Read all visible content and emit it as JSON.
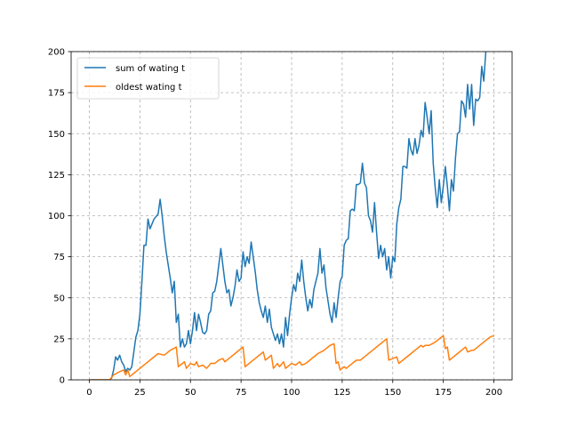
{
  "chart_data": {
    "type": "line",
    "title": "",
    "xlabel": "",
    "ylabel": "",
    "xlim": [
      -9,
      209
    ],
    "ylim": [
      0,
      200
    ],
    "x_ticks": [
      0,
      25,
      50,
      75,
      100,
      125,
      150,
      175,
      200
    ],
    "y_ticks": [
      0,
      25,
      50,
      75,
      100,
      125,
      150,
      175,
      200
    ],
    "grid": true,
    "legend_position": "top-left",
    "series": [
      {
        "name": "sum of wating t",
        "color": "#1f77b4",
        "points": [
          [
            0,
            0
          ],
          [
            5,
            0
          ],
          [
            10,
            0
          ],
          [
            11,
            1
          ],
          [
            12,
            6
          ],
          [
            13,
            14
          ],
          [
            14,
            12
          ],
          [
            15,
            15
          ],
          [
            16,
            11
          ],
          [
            17,
            9
          ],
          [
            18,
            5
          ],
          [
            19,
            7
          ],
          [
            20,
            6
          ],
          [
            21,
            8
          ],
          [
            22,
            17
          ],
          [
            23,
            26
          ],
          [
            24,
            30
          ],
          [
            25,
            40
          ],
          [
            26,
            60
          ],
          [
            27,
            82
          ],
          [
            28,
            82
          ],
          [
            29,
            98
          ],
          [
            30,
            92
          ],
          [
            31,
            95
          ],
          [
            32,
            98
          ],
          [
            34,
            101
          ],
          [
            35,
            110
          ],
          [
            36,
            100
          ],
          [
            37,
            88
          ],
          [
            38,
            78
          ],
          [
            39,
            70
          ],
          [
            40,
            62
          ],
          [
            41,
            53
          ],
          [
            42,
            60
          ],
          [
            43,
            35
          ],
          [
            44,
            40
          ],
          [
            45,
            20
          ],
          [
            46,
            25
          ],
          [
            47,
            20
          ],
          [
            48,
            22
          ],
          [
            49,
            30
          ],
          [
            50,
            22
          ],
          [
            51,
            30
          ],
          [
            52,
            41
          ],
          [
            53,
            30
          ],
          [
            54,
            40
          ],
          [
            55,
            35
          ],
          [
            56,
            29
          ],
          [
            57,
            28
          ],
          [
            58,
            30
          ],
          [
            59,
            40
          ],
          [
            60,
            42
          ],
          [
            61,
            53
          ],
          [
            62,
            54
          ],
          [
            63,
            60
          ],
          [
            64,
            70
          ],
          [
            65,
            80
          ],
          [
            66,
            70
          ],
          [
            67,
            60
          ],
          [
            68,
            53
          ],
          [
            69,
            55
          ],
          [
            70,
            45
          ],
          [
            71,
            50
          ],
          [
            72,
            57
          ],
          [
            73,
            67
          ],
          [
            74,
            60
          ],
          [
            75,
            62
          ],
          [
            76,
            78
          ],
          [
            77,
            69
          ],
          [
            78,
            75
          ],
          [
            79,
            71
          ],
          [
            80,
            84
          ],
          [
            81,
            75
          ],
          [
            82,
            66
          ],
          [
            83,
            55
          ],
          [
            84,
            47
          ],
          [
            85,
            42
          ],
          [
            86,
            38
          ],
          [
            87,
            45
          ],
          [
            88,
            35
          ],
          [
            89,
            43
          ],
          [
            90,
            32
          ],
          [
            91,
            28
          ],
          [
            92,
            24
          ],
          [
            93,
            28
          ],
          [
            94,
            22
          ],
          [
            95,
            28
          ],
          [
            96,
            20
          ],
          [
            97,
            38
          ],
          [
            98,
            27
          ],
          [
            99,
            40
          ],
          [
            100,
            50
          ],
          [
            101,
            58
          ],
          [
            102,
            54
          ],
          [
            103,
            65
          ],
          [
            104,
            60
          ],
          [
            105,
            73
          ],
          [
            106,
            60
          ],
          [
            107,
            50
          ],
          [
            108,
            42
          ],
          [
            109,
            49
          ],
          [
            110,
            44
          ],
          [
            111,
            55
          ],
          [
            112,
            60
          ],
          [
            113,
            65
          ],
          [
            114,
            80
          ],
          [
            115,
            65
          ],
          [
            116,
            70
          ],
          [
            117,
            56
          ],
          [
            118,
            48
          ],
          [
            119,
            40
          ],
          [
            120,
            35
          ],
          [
            121,
            47
          ],
          [
            122,
            38
          ],
          [
            123,
            50
          ],
          [
            124,
            60
          ],
          [
            125,
            63
          ],
          [
            126,
            82
          ],
          [
            127,
            85
          ],
          [
            128,
            86
          ],
          [
            129,
            103
          ],
          [
            130,
            104
          ],
          [
            131,
            103
          ],
          [
            132,
            119
          ],
          [
            133,
            119
          ],
          [
            134,
            120
          ],
          [
            135,
            132
          ],
          [
            136,
            120
          ],
          [
            137,
            117
          ],
          [
            138,
            100
          ],
          [
            139,
            97
          ],
          [
            140,
            90
          ],
          [
            141,
            108
          ],
          [
            142,
            90
          ],
          [
            143,
            74
          ],
          [
            144,
            82
          ],
          [
            145,
            75
          ],
          [
            146,
            80
          ],
          [
            147,
            67
          ],
          [
            148,
            75
          ],
          [
            149,
            62
          ],
          [
            150,
            75
          ],
          [
            151,
            72
          ],
          [
            152,
            95
          ],
          [
            153,
            105
          ],
          [
            154,
            110
          ],
          [
            155,
            130
          ],
          [
            156,
            130
          ],
          [
            157,
            129
          ],
          [
            158,
            147
          ],
          [
            159,
            140
          ],
          [
            160,
            137
          ],
          [
            161,
            147
          ],
          [
            162,
            138
          ],
          [
            163,
            143
          ],
          [
            164,
            152
          ],
          [
            165,
            148
          ],
          [
            166,
            169
          ],
          [
            167,
            160
          ],
          [
            168,
            150
          ],
          [
            169,
            164
          ],
          [
            170,
            132
          ],
          [
            171,
            117
          ],
          [
            172,
            105
          ],
          [
            173,
            122
          ],
          [
            174,
            108
          ],
          [
            175,
            118
          ],
          [
            176,
            130
          ],
          [
            177,
            118
          ],
          [
            178,
            103
          ],
          [
            179,
            122
          ],
          [
            180,
            115
          ],
          [
            181,
            135
          ],
          [
            182,
            150
          ],
          [
            183,
            151
          ],
          [
            184,
            170
          ],
          [
            185,
            168
          ],
          [
            186,
            160
          ],
          [
            187,
            180
          ],
          [
            188,
            165
          ],
          [
            189,
            180
          ],
          [
            190,
            155
          ],
          [
            191,
            171
          ],
          [
            192,
            170
          ],
          [
            193,
            172
          ],
          [
            194,
            191
          ],
          [
            195,
            182
          ],
          [
            196,
            200
          ],
          [
            197,
            204
          ]
        ]
      },
      {
        "name": "oldest wating t",
        "color": "#ff7f0e",
        "points": [
          [
            0,
            0
          ],
          [
            10,
            0
          ],
          [
            12,
            3
          ],
          [
            15,
            5
          ],
          [
            17,
            6
          ],
          [
            18,
            3
          ],
          [
            19,
            6
          ],
          [
            20,
            2
          ],
          [
            22,
            4
          ],
          [
            25,
            7
          ],
          [
            28,
            10
          ],
          [
            31,
            13
          ],
          [
            34,
            16
          ],
          [
            37,
            15
          ],
          [
            40,
            18
          ],
          [
            43,
            20
          ],
          [
            44,
            8
          ],
          [
            47,
            11
          ],
          [
            48,
            7
          ],
          [
            50,
            10
          ],
          [
            52,
            9
          ],
          [
            53,
            11
          ],
          [
            54,
            8
          ],
          [
            56,
            9
          ],
          [
            58,
            7
          ],
          [
            60,
            10
          ],
          [
            62,
            10
          ],
          [
            64,
            12
          ],
          [
            66,
            13
          ],
          [
            67,
            11
          ],
          [
            70,
            14
          ],
          [
            73,
            17
          ],
          [
            76,
            20
          ],
          [
            77,
            8
          ],
          [
            80,
            11
          ],
          [
            83,
            14
          ],
          [
            86,
            17
          ],
          [
            87,
            12
          ],
          [
            90,
            15
          ],
          [
            91,
            7
          ],
          [
            93,
            10
          ],
          [
            94,
            8
          ],
          [
            96,
            11
          ],
          [
            97,
            7
          ],
          [
            100,
            10
          ],
          [
            102,
            9
          ],
          [
            104,
            11
          ],
          [
            105,
            9
          ],
          [
            107,
            10
          ],
          [
            110,
            13
          ],
          [
            113,
            16
          ],
          [
            116,
            18
          ],
          [
            119,
            21
          ],
          [
            121,
            22
          ],
          [
            122,
            10
          ],
          [
            123,
            11
          ],
          [
            124,
            6
          ],
          [
            126,
            8
          ],
          [
            127,
            7
          ],
          [
            130,
            10
          ],
          [
            132,
            12
          ],
          [
            134,
            12
          ],
          [
            137,
            15
          ],
          [
            140,
            18
          ],
          [
            143,
            21
          ],
          [
            146,
            24
          ],
          [
            147,
            25
          ],
          [
            148,
            12
          ],
          [
            150,
            13
          ],
          [
            152,
            14
          ],
          [
            153,
            10
          ],
          [
            156,
            13
          ],
          [
            159,
            16
          ],
          [
            162,
            19
          ],
          [
            164,
            21
          ],
          [
            165,
            20
          ],
          [
            166,
            21
          ],
          [
            168,
            21
          ],
          [
            171,
            23
          ],
          [
            174,
            26
          ],
          [
            175,
            27
          ],
          [
            176,
            19
          ],
          [
            177,
            20
          ],
          [
            178,
            12
          ],
          [
            180,
            14
          ],
          [
            182,
            16
          ],
          [
            184,
            18
          ],
          [
            186,
            20
          ],
          [
            187,
            17
          ],
          [
            189,
            18
          ],
          [
            190,
            18
          ],
          [
            192,
            20
          ],
          [
            195,
            23
          ],
          [
            198,
            26
          ],
          [
            200,
            27
          ]
        ]
      }
    ]
  }
}
